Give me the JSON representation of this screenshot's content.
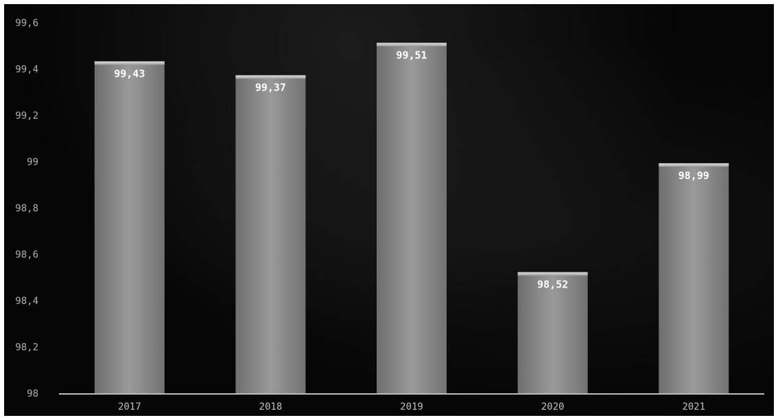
{
  "chart_data": {
    "type": "bar",
    "categories": [
      "2017",
      "2018",
      "2019",
      "2020",
      "2021"
    ],
    "values": [
      99.43,
      99.37,
      99.51,
      98.52,
      98.99
    ],
    "data_labels": [
      "99,43",
      "99,37",
      "99,51",
      "98,52",
      "98,99"
    ],
    "y_ticks": [
      98,
      98.2,
      98.4,
      98.6,
      98.8,
      99,
      99.2,
      99.4,
      99.6
    ],
    "y_tick_labels": [
      "98",
      "98,2",
      "98,4",
      "98,6",
      "98,8",
      "99",
      "99,2",
      "99,4",
      "99,6"
    ],
    "ylim": [
      98,
      99.6
    ],
    "grid": false,
    "bar_color": "#8a8a8a",
    "background_color": "#050505"
  }
}
